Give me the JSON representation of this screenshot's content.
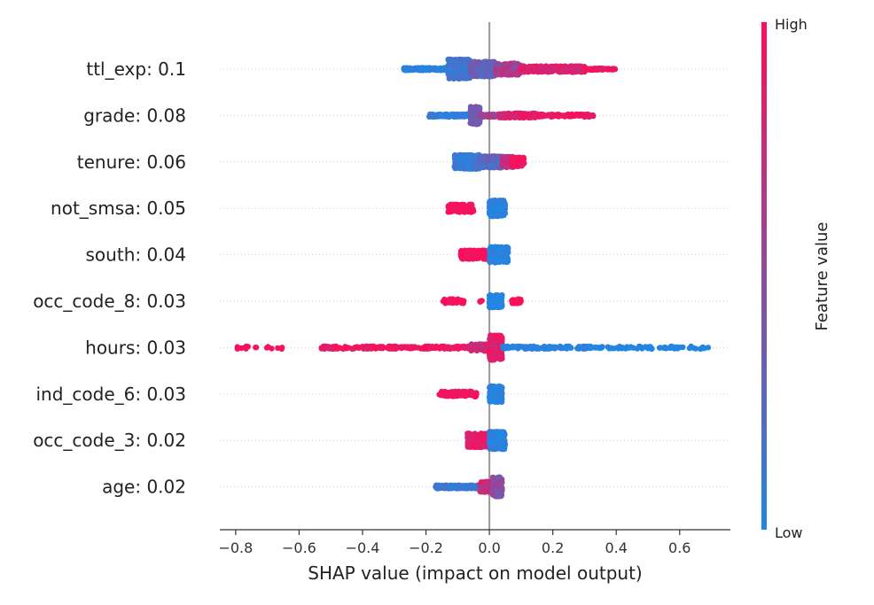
{
  "chart_data": {
    "type": "scatter",
    "subtype": "shap-beeswarm",
    "xlabel": "SHAP value (impact on model output)",
    "xlim": [
      -0.85,
      0.76
    ],
    "xticks": [
      -0.8,
      -0.6,
      -0.4,
      -0.2,
      0.0,
      0.2,
      0.4,
      0.6
    ],
    "xtick_labels": [
      "−0.8",
      "−0.6",
      "−0.4",
      "−0.2",
      "0.0",
      "0.2",
      "0.4",
      "0.6"
    ],
    "grid": false,
    "colors": {
      "low": "#1E88E5",
      "high": "#FF0D57",
      "zero_line": "#999999",
      "row_guide": "#cccccc",
      "axis": "#333333"
    },
    "colorbar": {
      "title": "Feature value",
      "high_label": "High",
      "low_label": "Low"
    },
    "features": [
      {
        "label": "ttl_exp: 0.1",
        "segments": [
          {
            "x0": -0.27,
            "x1": -0.1,
            "v0": 0.0,
            "v1": 0.15,
            "w": 3,
            "n": 180
          },
          {
            "x0": -0.13,
            "x1": -0.06,
            "v0": 0.05,
            "v1": 0.25,
            "w": 22,
            "n": 420
          },
          {
            "x0": -0.06,
            "x1": 0.02,
            "v0": 0.2,
            "v1": 0.45,
            "w": 17,
            "n": 320
          },
          {
            "x0": 0.02,
            "x1": 0.1,
            "v0": 0.45,
            "v1": 0.8,
            "w": 13,
            "n": 260
          },
          {
            "x0": 0.1,
            "x1": 0.3,
            "v0": 0.75,
            "v1": 0.95,
            "w": 7,
            "n": 260
          },
          {
            "x0": 0.3,
            "x1": 0.4,
            "v0": 0.85,
            "v1": 1.0,
            "w": 2,
            "n": 50
          }
        ]
      },
      {
        "label": "grade: 0.08",
        "segments": [
          {
            "x0": -0.19,
            "x1": -0.05,
            "v0": 0.0,
            "v1": 0.15,
            "w": 3,
            "n": 150
          },
          {
            "x0": -0.06,
            "x1": -0.03,
            "v0": 0.3,
            "v1": 0.45,
            "w": 20,
            "n": 200
          },
          {
            "x0": -0.03,
            "x1": 0.05,
            "v0": 0.5,
            "v1": 0.7,
            "w": 3,
            "n": 80
          },
          {
            "x0": 0.03,
            "x1": 0.15,
            "v0": 0.75,
            "v1": 0.95,
            "w": 5,
            "n": 180
          },
          {
            "x0": 0.15,
            "x1": 0.33,
            "v0": 0.85,
            "v1": 1.0,
            "w": 3,
            "n": 100
          }
        ]
      },
      {
        "label": "tenure: 0.06",
        "segments": [
          {
            "x0": -0.11,
            "x1": -0.03,
            "v0": 0.0,
            "v1": 0.2,
            "w": 16,
            "n": 380
          },
          {
            "x0": -0.03,
            "x1": 0.04,
            "v0": 0.15,
            "v1": 0.4,
            "w": 13,
            "n": 260
          },
          {
            "x0": 0.04,
            "x1": 0.08,
            "v0": 0.55,
            "v1": 0.8,
            "w": 12,
            "n": 150
          },
          {
            "x0": 0.07,
            "x1": 0.11,
            "v0": 0.85,
            "v1": 1.0,
            "w": 10,
            "n": 100
          }
        ]
      },
      {
        "label": "not_smsa: 0.05",
        "segments": [
          {
            "x0": -0.13,
            "x1": -0.05,
            "v0": 0.9,
            "v1": 1.0,
            "w": 9,
            "n": 140
          },
          {
            "x0": 0.0,
            "x1": 0.05,
            "v0": 0.0,
            "v1": 0.1,
            "w": 18,
            "n": 280
          }
        ]
      },
      {
        "label": "south: 0.04",
        "segments": [
          {
            "x0": -0.09,
            "x1": -0.01,
            "v0": 0.9,
            "v1": 1.0,
            "w": 10,
            "n": 160
          },
          {
            "x0": 0.0,
            "x1": 0.06,
            "v0": 0.0,
            "v1": 0.1,
            "w": 18,
            "n": 240
          }
        ]
      },
      {
        "label": "occ_code_8: 0.03",
        "segments": [
          {
            "x0": -0.15,
            "x1": -0.08,
            "v0": 0.95,
            "v1": 1.0,
            "w": 5,
            "n": 50
          },
          {
            "x0": -0.03,
            "x1": -0.02,
            "v0": 0.95,
            "v1": 1.0,
            "w": 2,
            "n": 4
          },
          {
            "x0": 0.0,
            "x1": 0.04,
            "v0": 0.0,
            "v1": 0.05,
            "w": 14,
            "n": 200
          },
          {
            "x0": 0.07,
            "x1": 0.1,
            "v0": 0.95,
            "v1": 1.0,
            "w": 5,
            "n": 20
          }
        ]
      },
      {
        "label": "hours: 0.03",
        "segments": [
          {
            "x0": -0.8,
            "x1": -0.76,
            "v0": 0.95,
            "v1": 1.0,
            "w": 3,
            "n": 10
          },
          {
            "x0": -0.74,
            "x1": -0.64,
            "v0": 0.92,
            "v1": 1.0,
            "w": 3,
            "n": 8
          },
          {
            "x0": -0.53,
            "x1": -0.05,
            "v0": 0.8,
            "v1": 1.0,
            "w": 3,
            "n": 200
          },
          {
            "x0": -0.06,
            "x1": 0.0,
            "v0": 0.6,
            "v1": 0.85,
            "w": 8,
            "n": 60
          },
          {
            "x0": 0.0,
            "x1": 0.04,
            "v0": 0.75,
            "v1": 1.0,
            "w": 28,
            "n": 280
          },
          {
            "x0": 0.04,
            "x1": 0.36,
            "v0": 0.0,
            "v1": 0.1,
            "w": 3,
            "n": 160
          },
          {
            "x0": 0.37,
            "x1": 0.69,
            "v0": 0.0,
            "v1": 0.05,
            "w": 3,
            "n": 60
          }
        ]
      },
      {
        "label": "ind_code_6: 0.03",
        "segments": [
          {
            "x0": -0.16,
            "x1": -0.04,
            "v0": 0.9,
            "v1": 1.0,
            "w": 6,
            "n": 100
          },
          {
            "x0": 0.0,
            "x1": 0.04,
            "v0": 0.0,
            "v1": 0.1,
            "w": 18,
            "n": 240
          }
        ]
      },
      {
        "label": "occ_code_3: 0.02",
        "segments": [
          {
            "x0": -0.07,
            "x1": 0.0,
            "v0": 0.8,
            "v1": 1.0,
            "w": 16,
            "n": 200
          },
          {
            "x0": 0.0,
            "x1": 0.05,
            "v0": 0.0,
            "v1": 0.15,
            "w": 20,
            "n": 240
          }
        ]
      },
      {
        "label": "age: 0.02",
        "segments": [
          {
            "x0": -0.17,
            "x1": -0.03,
            "v0": 0.05,
            "v1": 0.2,
            "w": 4,
            "n": 180
          },
          {
            "x0": -0.03,
            "x1": 0.02,
            "v0": 0.55,
            "v1": 0.9,
            "w": 12,
            "n": 160
          },
          {
            "x0": 0.01,
            "x1": 0.04,
            "v0": 0.35,
            "v1": 0.6,
            "w": 22,
            "n": 160
          }
        ]
      }
    ]
  }
}
